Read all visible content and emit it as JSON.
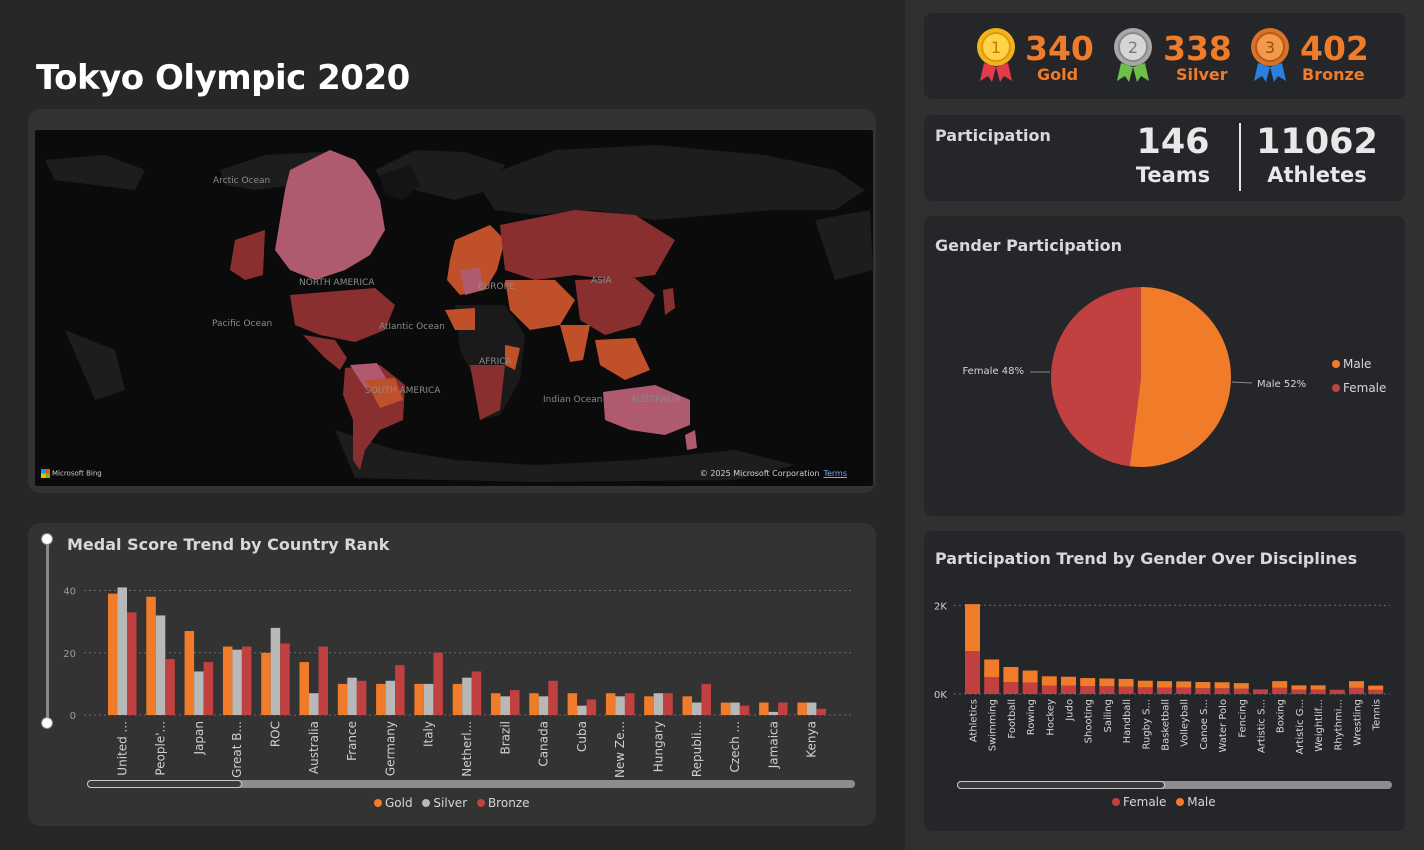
{
  "title": "Tokyo Olympic 2020",
  "map": {
    "labels": {
      "arctic": "Arctic Ocean",
      "north_america": "NORTH AMERICA",
      "pacific": "Pacific Ocean",
      "atlantic": "Atlantic Ocean",
      "europe": "EUROPE",
      "asia": "ASIA",
      "africa": "AFRICA",
      "south_america": "SOUTH AMERICA",
      "indian": "Indian Ocean",
      "australia": "AUSTRALIA"
    },
    "bing": "Microsoft Bing",
    "copyright": "© 2025 Microsoft Corporation",
    "terms": "Terms",
    "colors": {
      "water": "#0b0b0b",
      "land": "#2e2e2e",
      "high": "#b05a70",
      "mid": "#8a2f2f",
      "low": "#c0502a"
    }
  },
  "medals": {
    "gold": {
      "value": "340",
      "label": "Gold",
      "rank": "1"
    },
    "silver": {
      "value": "338",
      "label": "Silver",
      "rank": "2"
    },
    "bronze": {
      "value": "402",
      "label": "Bronze",
      "rank": "3"
    }
  },
  "participation": {
    "title": "Participation",
    "teams": {
      "value": "146",
      "label": "Teams"
    },
    "athletes": {
      "value": "11062",
      "label": "Athletes"
    }
  },
  "gender": {
    "title": "Gender Participation",
    "legend": [
      {
        "name": "Male",
        "color": "#f07c2a"
      },
      {
        "name": "Female",
        "color": "#c0413f"
      }
    ],
    "labels": {
      "male": "Male 52%",
      "female": "Female 48%"
    }
  },
  "medal_chart": {
    "title": "Medal Score Trend by Country Rank",
    "legend": [
      {
        "name": "Gold",
        "color": "#f07c2a"
      },
      {
        "name": "Silver",
        "color": "#b8b8b8"
      },
      {
        "name": "Bronze",
        "color": "#c0413f"
      }
    ]
  },
  "disc_chart": {
    "title": "Participation Trend by Gender Over Disciplines",
    "legend": [
      {
        "name": "Female",
        "color": "#c0413f"
      },
      {
        "name": "Male",
        "color": "#f07c2a"
      }
    ]
  },
  "chart_data": [
    {
      "type": "bar",
      "title": "Medal Score Trend by Country Rank",
      "categories": [
        "United ...",
        "People'...",
        "Japan",
        "Great B...",
        "ROC",
        "Australia",
        "France",
        "Germany",
        "Italy",
        "Netherl...",
        "Brazil",
        "Canada",
        "Cuba",
        "New Ze...",
        "Hungary",
        "Republi...",
        "Czech ...",
        "Jamaica",
        "Kenya"
      ],
      "series": [
        {
          "name": "Gold",
          "values": [
            39,
            38,
            27,
            22,
            20,
            17,
            10,
            10,
            10,
            10,
            7,
            7,
            7,
            7,
            6,
            6,
            4,
            4,
            4
          ]
        },
        {
          "name": "Silver",
          "values": [
            41,
            32,
            14,
            21,
            28,
            7,
            12,
            11,
            10,
            12,
            6,
            6,
            3,
            6,
            7,
            4,
            4,
            1,
            4
          ]
        },
        {
          "name": "Bronze",
          "values": [
            33,
            18,
            17,
            22,
            23,
            22,
            11,
            16,
            20,
            14,
            8,
            11,
            5,
            7,
            7,
            10,
            3,
            4,
            2
          ]
        }
      ],
      "yticks": [
        "0",
        "20",
        "40"
      ],
      "ylim": [
        0,
        45
      ],
      "grid": true,
      "legend_position": "bottom"
    },
    {
      "type": "pie",
      "title": "Gender Participation",
      "slices": [
        {
          "name": "Male",
          "value": 52
        },
        {
          "name": "Female",
          "value": 48
        }
      ],
      "legend_position": "right"
    },
    {
      "type": "bar",
      "stacked": true,
      "title": "Participation Trend by Gender Over Disciplines",
      "categories": [
        "Athletics",
        "Swimming",
        "Football",
        "Rowing",
        "Hockey",
        "Judo",
        "Shooting",
        "Sailing",
        "Handball",
        "Rugby S...",
        "Basketball",
        "Volleyball",
        "Canoe S...",
        "Water Polo",
        "Fencing",
        "Artistic S...",
        "Boxing",
        "Artistic G...",
        "Weightlif...",
        "Rhythmi...",
        "Wrestling",
        "Tennis"
      ],
      "series": [
        {
          "name": "Female",
          "values": [
            970,
            380,
            270,
            260,
            190,
            190,
            180,
            175,
            165,
            150,
            145,
            145,
            130,
            130,
            120,
            104,
            140,
            100,
            100,
            96,
            140,
            95
          ]
        },
        {
          "name": "Male",
          "values": [
            1060,
            400,
            340,
            270,
            210,
            200,
            180,
            175,
            175,
            150,
            145,
            140,
            140,
            135,
            125,
            0,
            150,
            95,
            95,
            0,
            150,
            95
          ]
        }
      ],
      "yticks": [
        "0K",
        "2K"
      ],
      "ylim": [
        0,
        2100
      ],
      "grid": true,
      "legend_position": "bottom"
    }
  ]
}
